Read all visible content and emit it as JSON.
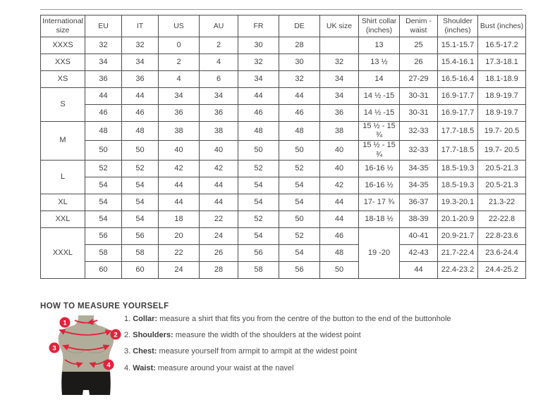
{
  "colors": {
    "accent_red": "#e0233c",
    "torso": "#b1ad9b",
    "torso_shade": "#9d9987",
    "shorts": "#1c1a19",
    "table_border": "#4d4d4d",
    "text": "#3f3f3f"
  },
  "size_table": {
    "columns": [
      "International size",
      "EU",
      "IT",
      "US",
      "AU",
      "FR",
      "DE",
      "UK size",
      "Shirt collar (inches)",
      "Denim - waist",
      "Shoulder (inches)",
      "Bust (inches)"
    ],
    "rows": [
      [
        "XXXS",
        "32",
        "32",
        "0",
        "2",
        "30",
        "28",
        "",
        "13",
        "25",
        "15.1-15.7",
        "16.5-17.2"
      ],
      [
        "XXS",
        "34",
        "34",
        "2",
        "4",
        "32",
        "30",
        "32",
        "13 ½",
        "26",
        "15.4-16.1",
        "17.3-18.1"
      ],
      [
        "XS",
        "36",
        "36",
        "4",
        "6",
        "34",
        "32",
        "34",
        "14",
        "27-29",
        "16.5-16.4",
        "18.1-18.9"
      ],
      [
        {
          "t": "S",
          "rs": 2
        },
        "44",
        "44",
        "34",
        "34",
        "44",
        "44",
        "34",
        "14 ½ -15",
        "30-31",
        "16.9-17.7",
        "18.9-19.7"
      ],
      [
        null,
        "46",
        "46",
        "36",
        "36",
        "46",
        "46",
        "36",
        "14 ½ -15",
        "30-31",
        "16.9-17.7",
        "18.9-19.7"
      ],
      [
        {
          "t": "M",
          "rs": 2
        },
        "48",
        "48",
        "38",
        "38",
        "48",
        "48",
        "38",
        "15 ½ - 15 ¾",
        "32-33",
        "17.7-18.5",
        "19.7- 20.5"
      ],
      [
        null,
        "50",
        "50",
        "40",
        "40",
        "50",
        "50",
        "40",
        "15 ½ - 15 ¾",
        "32-33",
        "17.7-18.5",
        "19.7- 20.5"
      ],
      [
        {
          "t": "L",
          "rs": 2
        },
        "52",
        "52",
        "42",
        "42",
        "52",
        "52",
        "40",
        "16-16 ½",
        "34-35",
        "18.5-19.3",
        "20.5-21.3"
      ],
      [
        null,
        "54",
        "54",
        "44",
        "44",
        "54",
        "54",
        "42",
        "16-16 ½",
        "34-35",
        "18.5-19.3",
        "20.5-21.3"
      ],
      [
        "XL",
        "54",
        "54",
        "44",
        "44",
        "54",
        "54",
        "44",
        "17- 17 ¾",
        "36-37",
        "19.3-20.1",
        "21.3-22"
      ],
      [
        "XXL",
        "54",
        "54",
        "18",
        "22",
        "52",
        "50",
        "44",
        "18-18 ½",
        "38-39",
        "20.1-20.9",
        "22-22.8"
      ],
      [
        {
          "t": "XXXL",
          "rs": 3
        },
        "56",
        "56",
        "20",
        "24",
        "54",
        "52",
        "46",
        {
          "t": "19 -20",
          "rs": 3
        },
        "40-41",
        "20.9-21.7",
        "22.8-23.6"
      ],
      [
        null,
        "58",
        "58",
        "22",
        "26",
        "56",
        "54",
        "48",
        null,
        "42-43",
        "21.7-22.4",
        "23.6-24.4"
      ],
      [
        null,
        "60",
        "60",
        "24",
        "28",
        "58",
        "56",
        "50",
        null,
        "44",
        "22.4-23.2",
        "24.4-25.2"
      ]
    ]
  },
  "measure": {
    "heading": "HOW TO MEASURE YOURSELF",
    "figure_badges": [
      "1",
      "2",
      "3",
      "4"
    ],
    "steps": [
      {
        "num": "1.",
        "label": "Collar:",
        "text": "measure a shirt that fits you from the centre of the button to the end of the buttonhole"
      },
      {
        "num": "2.",
        "label": "Shoulders:",
        "text": "measure the width of the shoulders at the widest point"
      },
      {
        "num": "3.",
        "label": "Chest:",
        "text": "measure yourself from armpit to armpit at the widest point"
      },
      {
        "num": "4.",
        "label": "Waist:",
        "text": "measure around your waist at the navel"
      }
    ]
  }
}
